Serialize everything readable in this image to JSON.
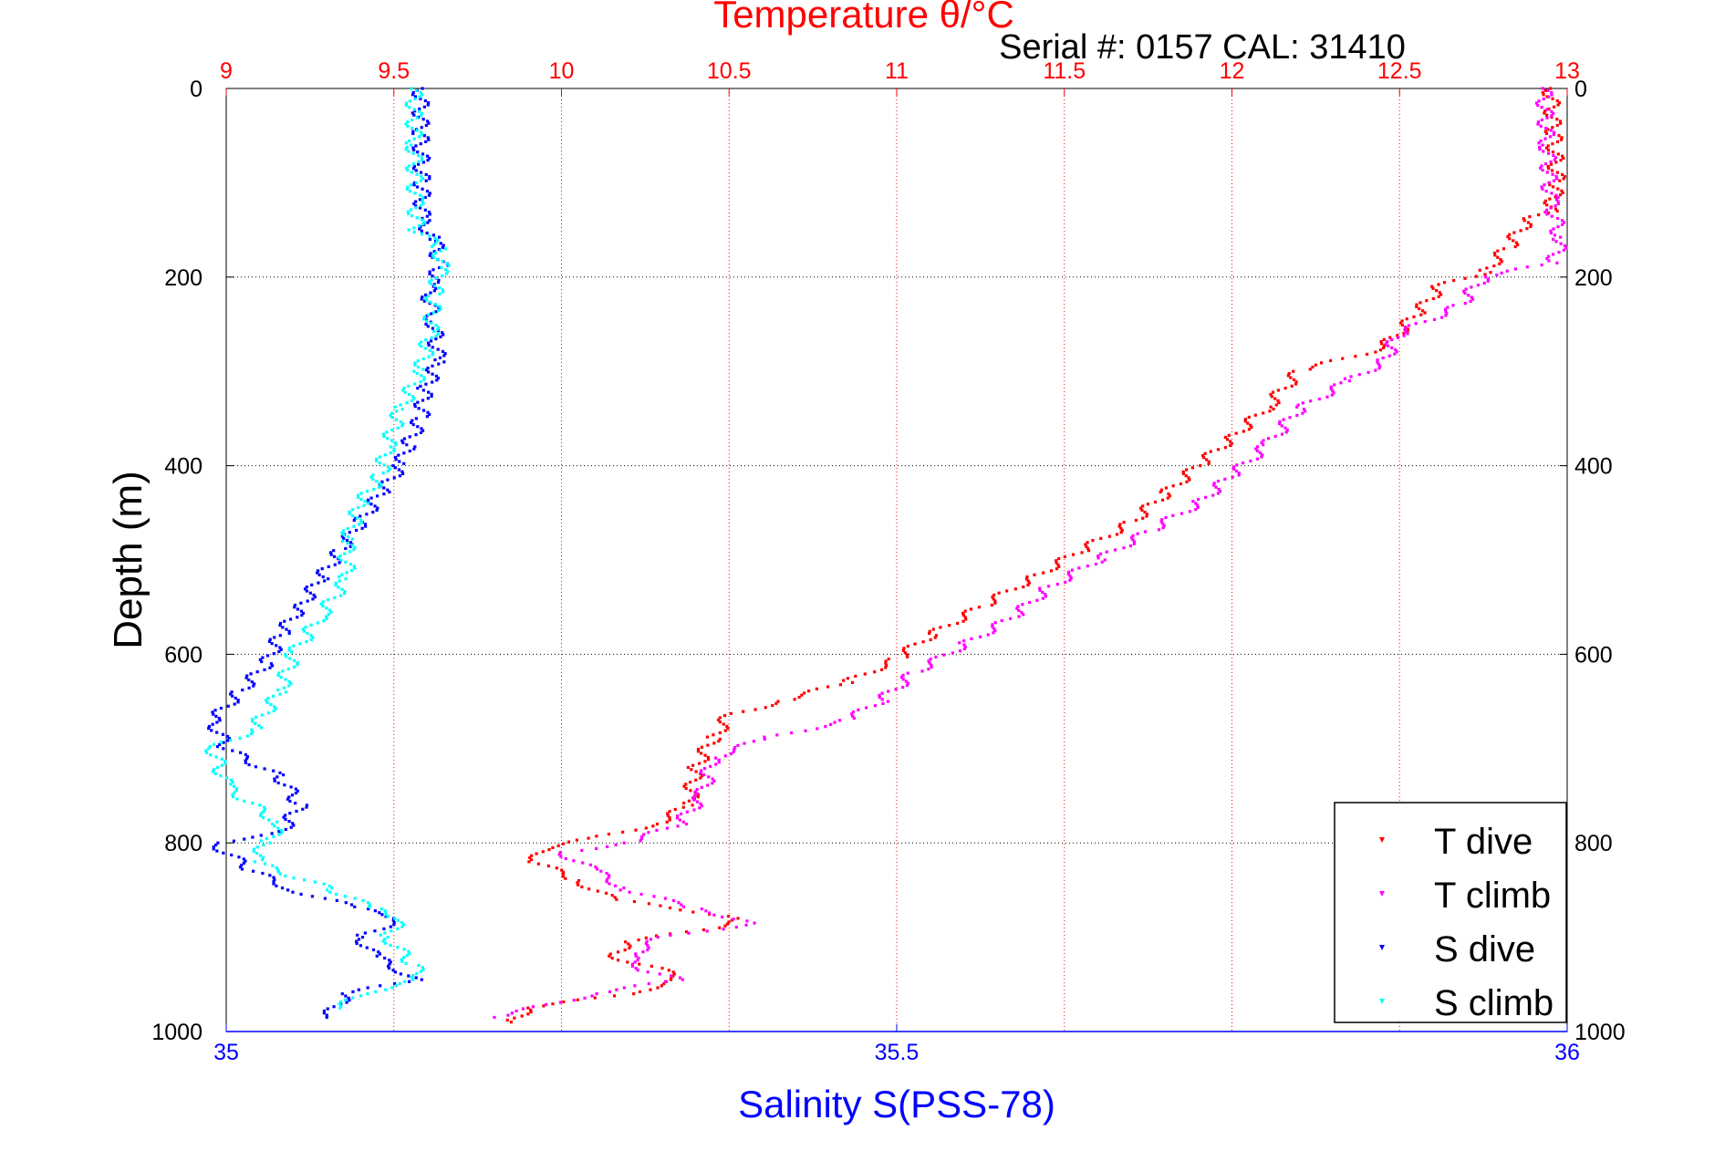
{
  "chart_data": {
    "type": "scatter",
    "title": "Temperature θ/°C",
    "subtitle": "Serial #: 0157  CAL: 31410",
    "ylabel": "Depth (m)",
    "x_top_label": "Temperature θ/°C",
    "x_bottom_label": "Salinity S(PSS-78)",
    "x_top_range": [
      9,
      13
    ],
    "x_bottom_range": [
      35,
      36
    ],
    "y_range": [
      0,
      1000
    ],
    "y_reversed": true,
    "x_top_ticks": [
      "9",
      "9.5",
      "10",
      "10.5",
      "11",
      "11.5",
      "12",
      "12.5",
      "13"
    ],
    "x_bottom_ticks": [
      "35",
      "35.5",
      "36"
    ],
    "y_ticks": [
      "0",
      "200",
      "400",
      "600",
      "800",
      "1000"
    ],
    "grid": true,
    "legend_position": "bottom-right",
    "colors": {
      "temperature_axis": "#ff0000",
      "salinity_axis": "#0000ff"
    },
    "series": [
      {
        "name": "T dive",
        "color": "#ff0000",
        "axis": "top",
        "points": [
          [
            12.95,
            0
          ],
          [
            12.96,
            50
          ],
          [
            12.97,
            100
          ],
          [
            12.95,
            130
          ],
          [
            12.88,
            140
          ],
          [
            12.82,
            170
          ],
          [
            12.75,
            195
          ],
          [
            12.62,
            210
          ],
          [
            12.55,
            240
          ],
          [
            12.45,
            275
          ],
          [
            12.2,
            300
          ],
          [
            12.1,
            340
          ],
          [
            12.0,
            370
          ],
          [
            11.9,
            400
          ],
          [
            11.8,
            430
          ],
          [
            11.7,
            460
          ],
          [
            11.55,
            490
          ],
          [
            11.4,
            520
          ],
          [
            11.25,
            550
          ],
          [
            11.1,
            580
          ],
          [
            11.0,
            605
          ],
          [
            10.85,
            630
          ],
          [
            10.65,
            650
          ],
          [
            10.5,
            665
          ],
          [
            10.45,
            690
          ],
          [
            10.4,
            720
          ],
          [
            10.38,
            760
          ],
          [
            10.28,
            780
          ],
          [
            10.1,
            795
          ],
          [
            9.95,
            805
          ],
          [
            9.92,
            820
          ],
          [
            10.05,
            840
          ],
          [
            10.15,
            860
          ],
          [
            10.55,
            880
          ],
          [
            10.45,
            890
          ],
          [
            10.2,
            905
          ],
          [
            10.15,
            920
          ],
          [
            10.3,
            935
          ],
          [
            10.35,
            945
          ],
          [
            10.2,
            960
          ],
          [
            9.9,
            975
          ],
          [
            9.85,
            990
          ]
        ]
      },
      {
        "name": "T climb",
        "color": "#ff00ff",
        "axis": "top",
        "points": [
          [
            12.93,
            0
          ],
          [
            12.94,
            60
          ],
          [
            12.95,
            120
          ],
          [
            12.98,
            160
          ],
          [
            12.96,
            185
          ],
          [
            12.75,
            200
          ],
          [
            12.68,
            230
          ],
          [
            12.5,
            260
          ],
          [
            12.45,
            290
          ],
          [
            12.35,
            310
          ],
          [
            12.2,
            340
          ],
          [
            12.1,
            380
          ],
          [
            12.0,
            410
          ],
          [
            11.9,
            440
          ],
          [
            11.75,
            470
          ],
          [
            11.6,
            500
          ],
          [
            11.45,
            530
          ],
          [
            11.35,
            560
          ],
          [
            11.2,
            590
          ],
          [
            11.05,
            620
          ],
          [
            10.95,
            650
          ],
          [
            10.85,
            670
          ],
          [
            10.6,
            690
          ],
          [
            10.45,
            710
          ],
          [
            10.42,
            750
          ],
          [
            10.35,
            780
          ],
          [
            10.2,
            800
          ],
          [
            10.0,
            810
          ],
          [
            10.1,
            830
          ],
          [
            10.2,
            850
          ],
          [
            10.4,
            870
          ],
          [
            10.58,
            885
          ],
          [
            10.3,
            900
          ],
          [
            10.2,
            920
          ],
          [
            10.25,
            935
          ],
          [
            10.35,
            945
          ],
          [
            10.1,
            960
          ],
          [
            9.8,
            985
          ]
        ]
      },
      {
        "name": "S dive",
        "color": "#0000ff",
        "axis": "bottom",
        "points": [
          [
            35.145,
            0
          ],
          [
            35.145,
            50
          ],
          [
            35.146,
            100
          ],
          [
            35.146,
            140
          ],
          [
            35.155,
            160
          ],
          [
            35.16,
            190
          ],
          [
            35.15,
            210
          ],
          [
            35.155,
            250
          ],
          [
            35.158,
            290
          ],
          [
            35.148,
            320
          ],
          [
            35.145,
            350
          ],
          [
            35.135,
            380
          ],
          [
            35.13,
            400
          ],
          [
            35.115,
            430
          ],
          [
            35.1,
            460
          ],
          [
            35.085,
            490
          ],
          [
            35.07,
            520
          ],
          [
            35.055,
            550
          ],
          [
            35.04,
            580
          ],
          [
            35.03,
            610
          ],
          [
            35.01,
            640
          ],
          [
            34.99,
            670
          ],
          [
            35.0,
            700
          ],
          [
            35.04,
            730
          ],
          [
            35.055,
            760
          ],
          [
            35.04,
            790
          ],
          [
            34.99,
            800
          ],
          [
            35.02,
            830
          ],
          [
            35.05,
            850
          ],
          [
            35.1,
            870
          ],
          [
            35.13,
            880
          ],
          [
            35.1,
            900
          ],
          [
            35.11,
            920
          ],
          [
            35.13,
            935
          ],
          [
            35.14,
            945
          ],
          [
            35.09,
            960
          ],
          [
            35.075,
            985
          ]
        ]
      },
      {
        "name": "S climb",
        "color": "#00ffff",
        "axis": "bottom",
        "points": [
          [
            35.14,
            0
          ],
          [
            35.14,
            60
          ],
          [
            35.141,
            120
          ],
          [
            35.142,
            150
          ],
          [
            35.16,
            170
          ],
          [
            35.16,
            190
          ],
          [
            35.155,
            220
          ],
          [
            35.152,
            260
          ],
          [
            35.145,
            300
          ],
          [
            35.13,
            340
          ],
          [
            35.12,
            380
          ],
          [
            35.115,
            410
          ],
          [
            35.1,
            440
          ],
          [
            35.09,
            480
          ],
          [
            35.09,
            520
          ],
          [
            35.07,
            560
          ],
          [
            35.05,
            600
          ],
          [
            35.04,
            640
          ],
          [
            35.02,
            680
          ],
          [
            34.99,
            700
          ],
          [
            35.0,
            740
          ],
          [
            35.04,
            780
          ],
          [
            35.03,
            800
          ],
          [
            35.02,
            820
          ],
          [
            35.08,
            850
          ],
          [
            35.11,
            870
          ],
          [
            35.13,
            880
          ],
          [
            35.12,
            900
          ],
          [
            35.14,
            930
          ],
          [
            35.145,
            945
          ],
          [
            35.1,
            960
          ],
          [
            35.085,
            975
          ]
        ]
      }
    ]
  }
}
